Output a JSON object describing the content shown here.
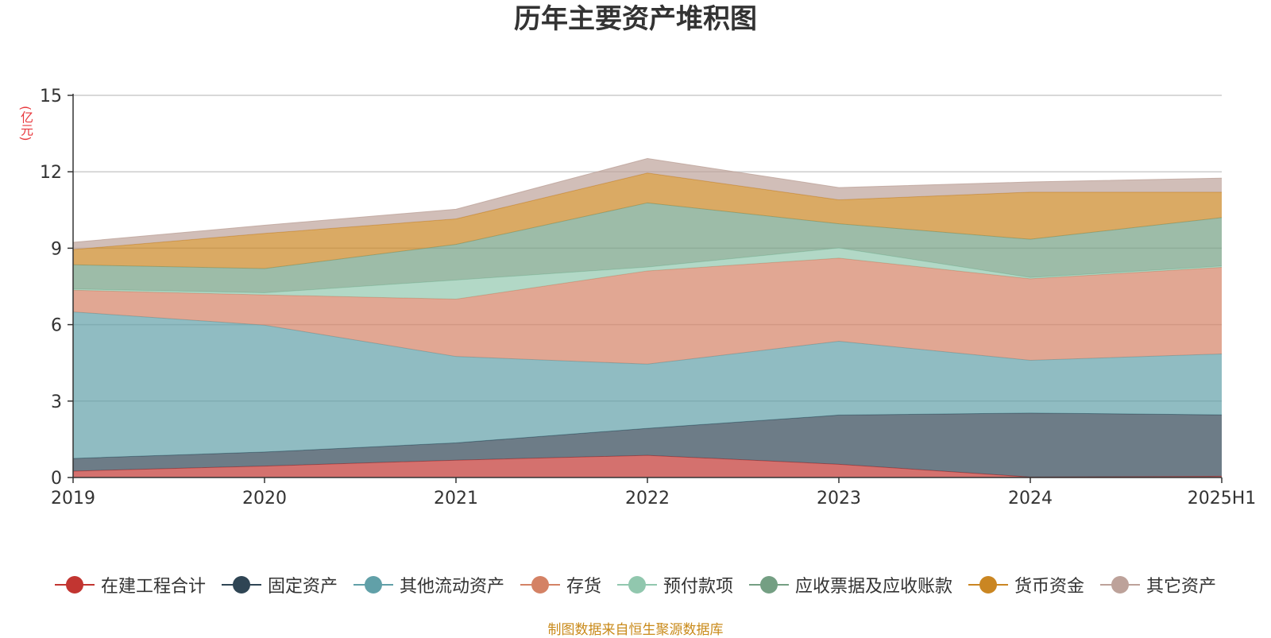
{
  "chart_data": {
    "type": "area",
    "stacked": true,
    "title": "历年主要资产堆积图",
    "y_unit": "(亿元)",
    "x": [
      "2019",
      "2020",
      "2021",
      "2022",
      "2023",
      "2024",
      "2025H1"
    ],
    "ylim": [
      0,
      15
    ],
    "yticks": [
      0,
      3,
      6,
      9,
      12,
      15
    ],
    "grid": true,
    "legend_position": "bottom",
    "series": [
      {
        "name": "在建工程合计",
        "color": "#c23531",
        "values": [
          0.25,
          0.45,
          0.68,
          0.87,
          0.52,
          0.02,
          0.05
        ]
      },
      {
        "name": "固定资产",
        "color": "#2f4554",
        "values": [
          0.5,
          0.55,
          0.68,
          1.06,
          1.93,
          2.51,
          2.41
        ]
      },
      {
        "name": "其他流动资产",
        "color": "#61a0a8",
        "values": [
          5.75,
          4.98,
          3.39,
          2.52,
          2.9,
          2.07,
          2.39
        ]
      },
      {
        "name": "存货",
        "color": "#d48265",
        "values": [
          0.85,
          1.19,
          2.25,
          3.66,
          3.26,
          3.2,
          3.4
        ]
      },
      {
        "name": "预付款项",
        "color": "#91c7ae",
        "values": [
          0.05,
          0.08,
          0.75,
          0.15,
          0.4,
          0.05,
          0.05
        ]
      },
      {
        "name": "应收票据及应收账款",
        "color": "#749f83",
        "values": [
          0.95,
          0.95,
          1.4,
          2.52,
          0.95,
          1.5,
          1.9
        ]
      },
      {
        "name": "货币资金",
        "color": "#ca8622",
        "values": [
          0.6,
          1.38,
          1.0,
          1.17,
          0.94,
          1.85,
          1.0
        ]
      },
      {
        "name": "其它资产",
        "color": "#bda29a",
        "values": [
          0.28,
          0.32,
          0.38,
          0.57,
          0.48,
          0.4,
          0.55
        ]
      }
    ]
  },
  "source_note": "制图数据来自恒生聚源数据库"
}
